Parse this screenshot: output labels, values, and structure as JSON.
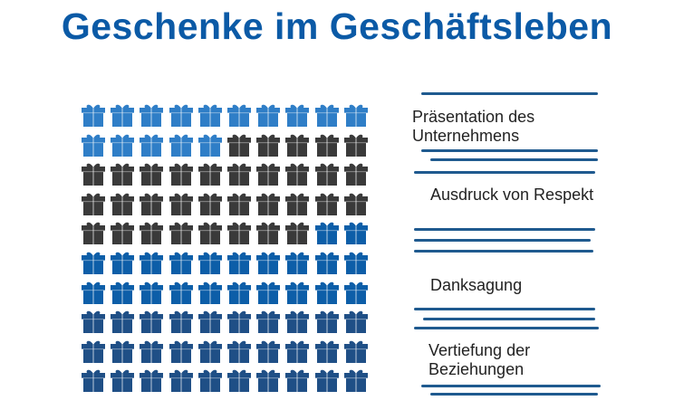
{
  "title": "Geschenke im Geschäftsleben",
  "colors": {
    "title": "#0b5aa6",
    "stroke": "#1f5a8f"
  },
  "chart_data": {
    "type": "waffle",
    "title": "Geschenke im Geschäftsleben",
    "total": 100,
    "categories": [
      {
        "name": "Präsentation des Unternehmens",
        "line1": "Präsentation des",
        "line2": "Unternehmens",
        "value": 15,
        "color": "#2f7ec7"
      },
      {
        "name": "Ausdruck von Respekt",
        "line1": "Ausdruck von Respekt",
        "line2": "",
        "value": 33,
        "color": "#3a3a3a"
      },
      {
        "name": "Danksagung",
        "line1": "Danksagung",
        "line2": "",
        "value": 22,
        "color": "#0d5ea8"
      },
      {
        "name": "Vertiefung der Beziehungen",
        "line1": "Vertiefung der",
        "line2": "Beziehungen",
        "value": 30,
        "color": "#1f4f86"
      }
    ]
  }
}
